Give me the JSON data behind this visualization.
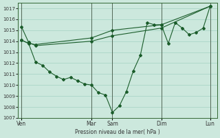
{
  "bg_color": "#cce8dd",
  "grid_color": "#99ccbb",
  "line_color": "#1a5c2a",
  "marker_color": "#1a5c2a",
  "xlabel": "Pression niveau de la mer( hPa )",
  "ylim": [
    1007,
    1017.5
  ],
  "yticks": [
    1007,
    1008,
    1009,
    1010,
    1011,
    1012,
    1013,
    1014,
    1015,
    1016,
    1017
  ],
  "day_labels": [
    "Ven",
    "Mar",
    "Sam",
    "Dim",
    "Lun"
  ],
  "day_positions": [
    0,
    10,
    13,
    20,
    27
  ],
  "xlim": [
    -0.5,
    28
  ],
  "series1_x": [
    0,
    1,
    2,
    10,
    13,
    20,
    27
  ],
  "series1_y": [
    1015.3,
    1013.9,
    1013.6,
    1014.0,
    1014.5,
    1015.2,
    1017.2
  ],
  "series2_x": [
    0,
    1,
    2,
    10,
    13,
    20,
    27
  ],
  "series2_y": [
    1014.1,
    1013.8,
    1013.7,
    1014.3,
    1015.0,
    1015.5,
    1017.2
  ],
  "series3_x": [
    0,
    1,
    2,
    3,
    4,
    5,
    6,
    7,
    8,
    9,
    10,
    11,
    12,
    13,
    14,
    15,
    16,
    17,
    18,
    19,
    20,
    21,
    22,
    23,
    24,
    25,
    26,
    27
  ],
  "series3_y": [
    1014.1,
    1013.8,
    1012.1,
    1011.8,
    1011.2,
    1010.8,
    1010.5,
    1010.7,
    1010.4,
    1010.1,
    1010.0,
    1009.3,
    1009.1,
    1007.5,
    1008.1,
    1009.4,
    1011.3,
    1012.7,
    1015.7,
    1015.5,
    1015.5,
    1013.8,
    1015.7,
    1015.2,
    1014.6,
    1014.8,
    1015.2,
    1017.2
  ]
}
